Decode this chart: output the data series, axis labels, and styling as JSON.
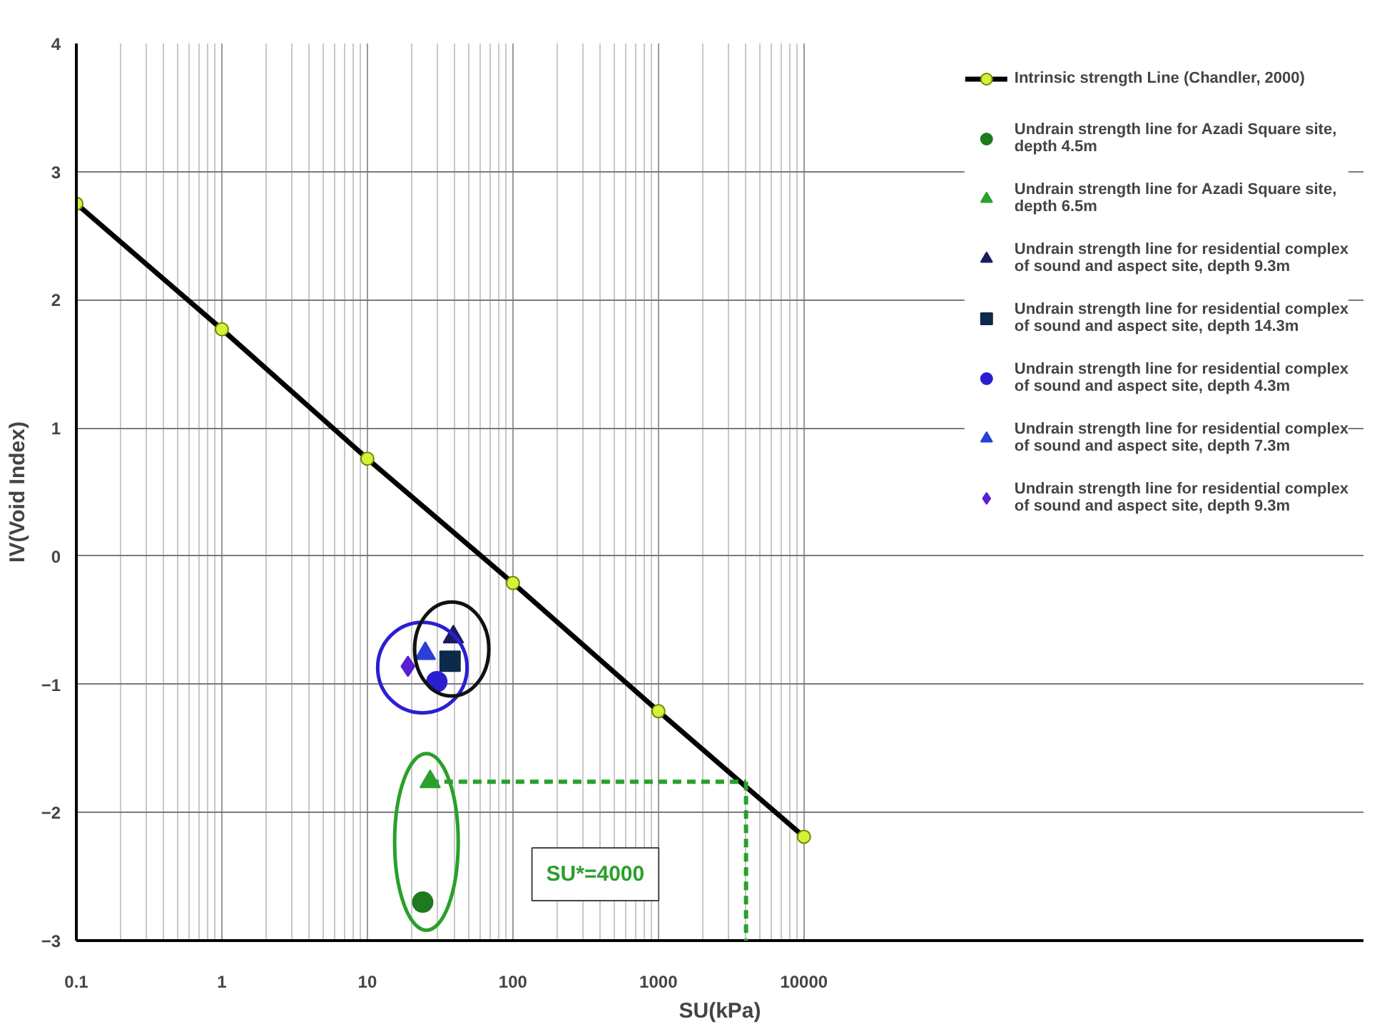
{
  "chart_data": {
    "type": "scatter",
    "xlabel": "SU(kPa)",
    "ylabel": "IV(Void Index)",
    "log": "x",
    "xlim": [
      0.1,
      70000000
    ],
    "ylim": [
      -3,
      4
    ],
    "xticks": [
      0.1,
      1,
      10,
      100,
      1000,
      10000
    ],
    "yticks": [
      -3,
      -2,
      -1,
      0,
      1,
      2,
      3,
      4
    ],
    "grid": true,
    "legend": "top right",
    "series": [
      {
        "name": "Intrinsic strength Line (Chandler, 2000)",
        "type": "line",
        "marker": "circle",
        "color": "#000000",
        "colors": [
          "#d9ef3a",
          "#d9ef3a",
          "#d9ef3a",
          "#d9ef3a",
          "#d9ef3a",
          "#d9ef3a"
        ],
        "x": [
          0.1,
          1,
          10,
          100,
          1000,
          10000
        ],
        "values": [
          2.75,
          1.77,
          0.76,
          -0.21,
          -1.21,
          -2.19
        ]
      },
      {
        "name": "Undrain strength line for Azadi Square site, depth 4.5m",
        "marker": "circle",
        "color": "#1f7a1f",
        "x": [
          24
        ],
        "values": [
          -2.7
        ]
      },
      {
        "name": "Undrain strength line for Azadi Square site, depth 6.5m",
        "marker": "triangle",
        "color": "#2ca02c",
        "x": [
          27
        ],
        "values": [
          -1.76
        ]
      },
      {
        "name": "Undrain strength line for residential complex of sound and aspect site, depth 9.3m",
        "marker": "triangle",
        "color": "#1c1a5e",
        "x": [
          39
        ],
        "values": [
          -0.63
        ]
      },
      {
        "name": "Undrain strength line for residential complex of sound and aspect site, depth 14.3m",
        "marker": "square",
        "color": "#0d2a4a",
        "x": [
          37
        ],
        "values": [
          -0.82
        ]
      },
      {
        "name": "Undrain strength line for residential complex  of sound and aspect site, depth 4.3m",
        "marker": "circle",
        "color": "#2a1fd0",
        "x": [
          30
        ],
        "values": [
          -0.98
        ]
      },
      {
        "name": "Undrain strength line for residential complex of sound and aspect site, depth 7.3m",
        "marker": "triangle",
        "color": "#2a3fd8",
        "x": [
          25
        ],
        "values": [
          -0.76
        ]
      },
      {
        "name": "Undrain strength line for residential complex of sound and aspect site, depth 9.3m",
        "marker": "diamond",
        "color": "#5a1fd0",
        "x": [
          19
        ],
        "values": [
          -0.86
        ]
      }
    ],
    "ref_lines": [
      {
        "axis": "x",
        "value": 4000,
        "label": "SU*=4000",
        "color": "#2aa02a",
        "line_style": "dashed"
      },
      {
        "axis": "y",
        "value": -1.76,
        "label": null,
        "color": "#2aa02a",
        "line_style": "dashed"
      }
    ]
  }
}
